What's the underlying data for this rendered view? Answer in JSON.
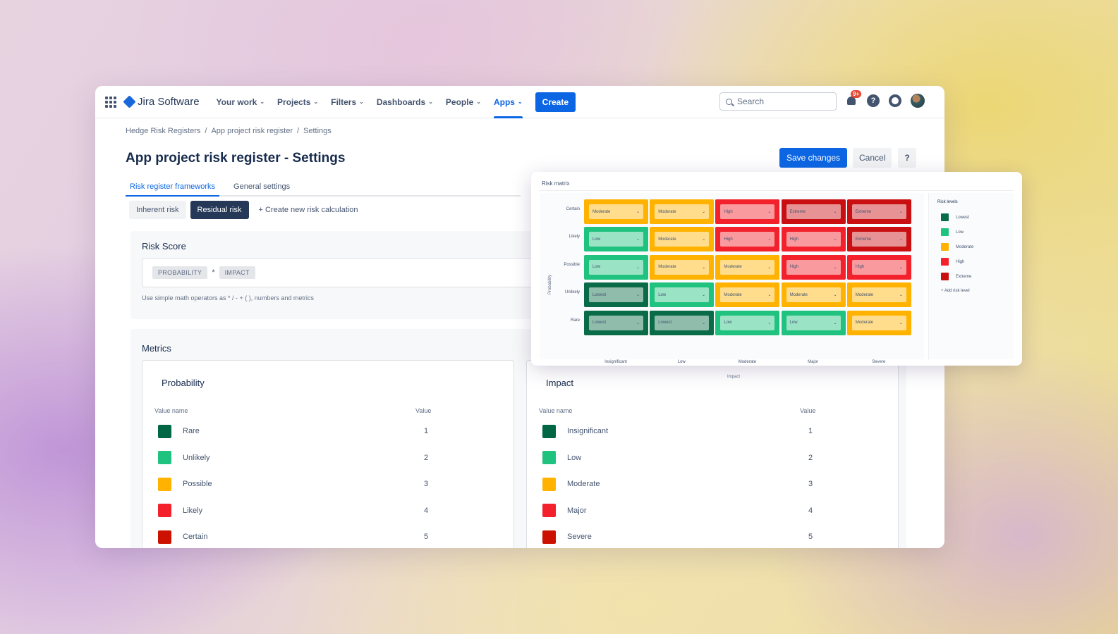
{
  "nav": {
    "product": "Jira Software",
    "items": [
      {
        "label": "Your work"
      },
      {
        "label": "Projects"
      },
      {
        "label": "Filters"
      },
      {
        "label": "Dashboards"
      },
      {
        "label": "People"
      },
      {
        "label": "Apps",
        "active": true
      }
    ],
    "create_label": "Create",
    "search_placeholder": "Search",
    "notification_badge": "9+",
    "help_label": "?"
  },
  "breadcrumb": {
    "items": [
      "Hedge Risk Registers",
      "App project risk register",
      "Settings"
    ],
    "separator": "/"
  },
  "page": {
    "title": "App project risk register - Settings",
    "save_label": "Save changes",
    "cancel_label": "Cancel",
    "help_label": "?"
  },
  "tabs": [
    "Risk register frameworks",
    "General settings"
  ],
  "subtabs": {
    "items": [
      "Inherent risk",
      "Residual risk"
    ],
    "active_index": 1,
    "create_label": "Create new risk calculation"
  },
  "risk_score": {
    "title": "Risk Score",
    "tokens": [
      "PROBABILITY",
      "IMPACT"
    ],
    "operator": "*",
    "hint": "Use simple math operators as * / - + ( ), numbers and metrics"
  },
  "metrics": {
    "title": "Metrics",
    "probability": {
      "title": "Probability",
      "col_name": "Value name",
      "col_value": "Value",
      "rows": [
        {
          "name": "Rare",
          "value": "1",
          "color": "#006644"
        },
        {
          "name": "Unlikely",
          "value": "2",
          "color": "#1fc27e"
        },
        {
          "name": "Possible",
          "value": "3",
          "color": "#ffb300"
        },
        {
          "name": "Likely",
          "value": "4",
          "color": "#f2212b"
        },
        {
          "name": "Certain",
          "value": "5",
          "color": "#cc1100"
        }
      ]
    },
    "impact": {
      "title": "Impact",
      "col_name": "Value name",
      "col_value": "Value",
      "rows": [
        {
          "name": "Insignificant",
          "value": "1",
          "color": "#006644"
        },
        {
          "name": "Low",
          "value": "2",
          "color": "#1fc27e"
        },
        {
          "name": "Moderate",
          "value": "3",
          "color": "#ffb300"
        },
        {
          "name": "Major",
          "value": "4",
          "color": "#f2212b"
        },
        {
          "name": "Severe",
          "value": "5",
          "color": "#cc1100"
        }
      ]
    }
  },
  "risk_matrix": {
    "title": "Risk matrix",
    "y_axis": "Probability",
    "x_axis": "Impact",
    "rows": [
      "Certain",
      "Likely",
      "Possible",
      "Unlikely",
      "Rare"
    ],
    "cols": [
      "Insignificant",
      "Low",
      "Moderate",
      "Major",
      "Severe"
    ],
    "cells": [
      [
        "Moderate",
        "Moderate",
        "High",
        "Extreme",
        "Extreme"
      ],
      [
        "Low",
        "Moderate",
        "High",
        "High",
        "Extreme"
      ],
      [
        "Low",
        "Moderate",
        "Moderate",
        "High",
        "High"
      ],
      [
        "Lowest",
        "Low",
        "Moderate",
        "Moderate",
        "Moderate"
      ],
      [
        "Lowest",
        "Lowest",
        "Low",
        "Low",
        "Moderate"
      ]
    ],
    "level_colors": {
      "Lowest": "#0a6b48",
      "Low": "#1fc27e",
      "Moderate": "#ffb300",
      "High": "#f2212b",
      "Extreme": "#c90f12"
    },
    "legend": {
      "title": "Risk levels",
      "items": [
        "Lowest",
        "Low",
        "Moderate",
        "High",
        "Extreme"
      ],
      "add_label": "+ Add risk level"
    }
  }
}
